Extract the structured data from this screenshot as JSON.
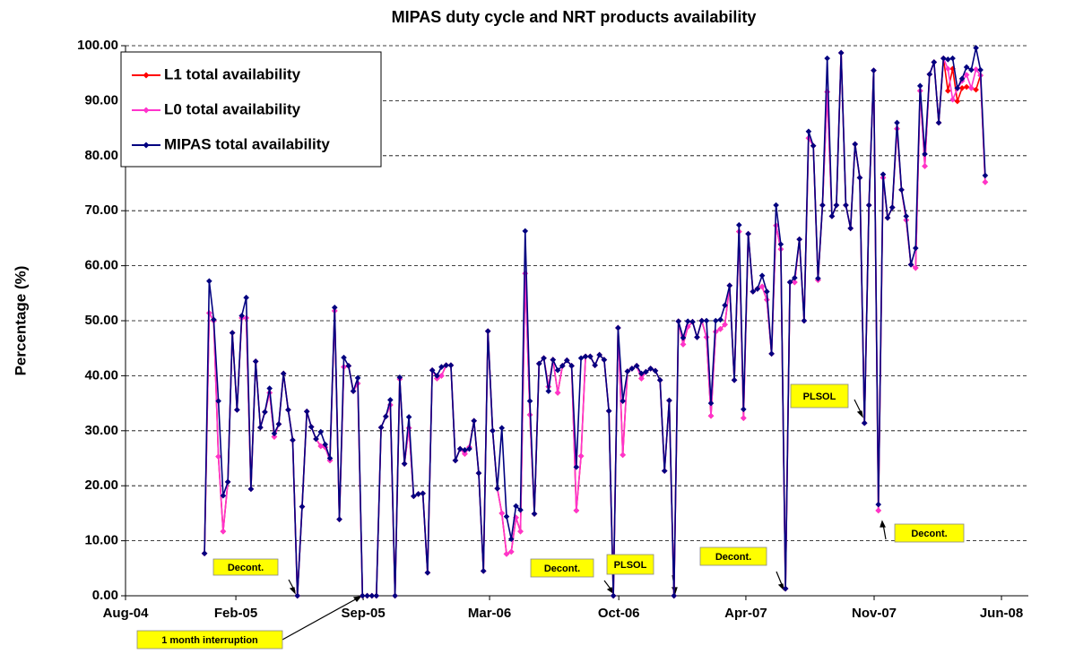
{
  "chart_data": {
    "type": "line",
    "title": "MIPAS duty cycle and NRT products availability",
    "y_label": "Percentage (%)",
    "xlim": [
      2004.659,
      2008.488
    ],
    "xticks": [
      {
        "value": 2004.659,
        "label": "Aug-04"
      },
      {
        "value": 2005.127,
        "label": "Feb-05"
      },
      {
        "value": 2005.667,
        "label": "Sep-05"
      },
      {
        "value": 2006.203,
        "label": "Mar-06"
      },
      {
        "value": 2006.751,
        "label": "Oct-06"
      },
      {
        "value": 2007.29,
        "label": "Apr-07"
      },
      {
        "value": 2007.834,
        "label": "Nov-07"
      },
      {
        "value": 2008.374,
        "label": "Jun-08"
      }
    ],
    "ylim": [
      0,
      100
    ],
    "yticks": [
      {
        "value": 0,
        "label": "0.00"
      },
      {
        "value": 10,
        "label": "10.00"
      },
      {
        "value": 20,
        "label": "20.00"
      },
      {
        "value": 30,
        "label": "30.00"
      },
      {
        "value": 40,
        "label": "40.00"
      },
      {
        "value": 50,
        "label": "50.00"
      },
      {
        "value": 60,
        "label": "60.00"
      },
      {
        "value": 70,
        "label": "70.00"
      },
      {
        "value": 80,
        "label": "80.00"
      },
      {
        "value": 90,
        "label": "90.00"
      },
      {
        "value": 100,
        "label": "100.00"
      }
    ],
    "grid": true,
    "legend": "top-left",
    "x": [
      2004.994,
      2005.014,
      2005.033,
      2005.053,
      2005.073,
      2005.093,
      2005.112,
      2005.132,
      2005.152,
      2005.171,
      2005.191,
      2005.211,
      2005.231,
      2005.25,
      2005.27,
      2005.29,
      2005.309,
      2005.329,
      2005.349,
      2005.368,
      2005.388,
      2005.408,
      2005.428,
      2005.447,
      2005.467,
      2005.487,
      2005.506,
      2005.526,
      2005.546,
      2005.566,
      2005.585,
      2005.605,
      2005.625,
      2005.644,
      2005.664,
      2005.684,
      2005.704,
      2005.723,
      2005.743,
      2005.763,
      2005.782,
      2005.802,
      2005.822,
      2005.842,
      2005.861,
      2005.881,
      2005.901,
      2005.92,
      2005.94,
      2005.96,
      2005.98,
      2005.999,
      2006.019,
      2006.039,
      2006.058,
      2006.078,
      2006.098,
      2006.117,
      2006.137,
      2006.157,
      2006.177,
      2006.196,
      2006.216,
      2006.236,
      2006.255,
      2006.275,
      2006.295,
      2006.315,
      2006.334,
      2006.354,
      2006.374,
      2006.393,
      2006.413,
      2006.433,
      2006.453,
      2006.472,
      2006.492,
      2006.512,
      2006.531,
      2006.551,
      2006.571,
      2006.591,
      2006.61,
      2006.63,
      2006.65,
      2006.669,
      2006.689,
      2006.709,
      2006.728,
      2006.748,
      2006.768,
      2006.788,
      2006.807,
      2006.827,
      2006.847,
      2006.866,
      2006.886,
      2006.906,
      2006.926,
      2006.945,
      2006.965,
      2006.985,
      2007.004,
      2007.024,
      2007.044,
      2007.064,
      2007.083,
      2007.103,
      2007.123,
      2007.142,
      2007.162,
      2007.182,
      2007.201,
      2007.221,
      2007.241,
      2007.261,
      2007.28,
      2007.3,
      2007.32,
      2007.339,
      2007.359,
      2007.379,
      2007.399,
      2007.418,
      2007.438,
      2007.458,
      2007.477,
      2007.497,
      2007.517,
      2007.537,
      2007.556,
      2007.576,
      2007.596,
      2007.615,
      2007.635,
      2007.655,
      2007.674,
      2007.694,
      2007.714,
      2007.734,
      2007.753,
      2007.773,
      2007.793,
      2007.812,
      2007.832,
      2007.852,
      2007.872,
      2007.891,
      2007.911,
      2007.931,
      2007.95,
      2007.97,
      2007.99,
      2008.01,
      2008.029,
      2008.049,
      2008.069,
      2008.088,
      2008.108,
      2008.128,
      2008.147,
      2008.167,
      2008.187,
      2008.207,
      2008.226,
      2008.246,
      2008.266,
      2008.285,
      2008.305
    ],
    "series": [
      {
        "name": "L1 total availability",
        "color": "#ff0000",
        "values": [
          7.7,
          51.4,
          50,
          25.3,
          11.7,
          20.7,
          47.8,
          33.8,
          50.5,
          50.5,
          19.4,
          42.6,
          30.6,
          33.4,
          36.9,
          28.9,
          31.2,
          40.4,
          33.8,
          28.3,
          0,
          16.2,
          33.5,
          30.7,
          28.5,
          27.2,
          27,
          24.6,
          51.8,
          13.9,
          41.6,
          41.8,
          37.2,
          38.6,
          0,
          0,
          0,
          0,
          30.6,
          32.6,
          34.7,
          0,
          39.4,
          24,
          30.5,
          18.1,
          18.5,
          18.6,
          4.2,
          41,
          39.5,
          40,
          41.9,
          41.9,
          24.6,
          26.7,
          25.8,
          27,
          31.8,
          22.3,
          4.5,
          48.1,
          30,
          19.5,
          15,
          7.6,
          8,
          14.2,
          11.7,
          58.6,
          32.9,
          14.9,
          42.2,
          43.2,
          38,
          42.9,
          36.9,
          41.8,
          42.8,
          41.8,
          15.5,
          25.4,
          43.5,
          43.5,
          41.9,
          43.8,
          42.9,
          33.6,
          0,
          48.7,
          25.6,
          40.8,
          41.3,
          41.8,
          39.5,
          40.7,
          41.3,
          40.9,
          39.2,
          22.7,
          35.5,
          0,
          49.9,
          45.7,
          48.9,
          49.8,
          47,
          50,
          47,
          32.7,
          48,
          48.5,
          49.3,
          56.4,
          39.2,
          66.2,
          32.3,
          65.8,
          55.3,
          55.8,
          56.2,
          53.8,
          44,
          67.3,
          63,
          1.3,
          57,
          57,
          64.8,
          50,
          83.2,
          81.8,
          57.4,
          71,
          91.6,
          69,
          71,
          98.7,
          71,
          66.8,
          82.1,
          76,
          31.4,
          71,
          95.5,
          15.5,
          76,
          68.7,
          70.6,
          84.9,
          73.8,
          68.3,
          60.2,
          59.6,
          91.8,
          78.1,
          94.8,
          97,
          86,
          97.7,
          91.8,
          95.8,
          89.9,
          92.3,
          92.5,
          92.3,
          92,
          94.6,
          75.2
        ]
      },
      {
        "name": "L0 total availability",
        "color": "#ff33cc",
        "values": [
          7.7,
          51.4,
          50,
          25.3,
          11.7,
          20.7,
          47.8,
          33.8,
          50.5,
          50.5,
          19.4,
          42.6,
          30.6,
          33.4,
          36.9,
          28.9,
          31.2,
          40.4,
          33.8,
          28.3,
          0,
          16.2,
          33.5,
          30.7,
          28.5,
          27.2,
          27,
          24.6,
          51.8,
          13.9,
          41.6,
          41.8,
          37.2,
          38.6,
          0,
          0,
          0,
          0,
          30.6,
          32.6,
          34.7,
          0,
          39.4,
          24,
          30.5,
          18.1,
          18.5,
          18.6,
          4.2,
          41,
          39.5,
          40,
          41.9,
          41.9,
          24.6,
          26.7,
          25.8,
          27,
          31.8,
          22.3,
          4.5,
          48.1,
          30,
          19.5,
          15,
          7.6,
          8,
          14.2,
          11.7,
          58.6,
          32.9,
          14.9,
          42.2,
          43.2,
          38,
          42.9,
          36.9,
          41.8,
          42.8,
          41.8,
          15.5,
          25.4,
          43.5,
          43.5,
          41.9,
          43.8,
          42.9,
          33.6,
          0,
          48.7,
          25.6,
          40.8,
          41.3,
          41.8,
          39.5,
          40.7,
          41.3,
          40.9,
          39.2,
          22.7,
          35.5,
          0,
          49.9,
          45.7,
          48.9,
          49.8,
          47,
          50,
          47,
          32.7,
          48,
          48.5,
          49.3,
          56.4,
          39.2,
          66.2,
          32.3,
          65.8,
          55.3,
          55.8,
          56.2,
          53.8,
          44,
          67.3,
          63,
          1.3,
          57,
          57,
          64.8,
          50,
          83.2,
          81.8,
          57.4,
          71,
          91.6,
          69,
          71,
          98.7,
          71,
          66.8,
          82.1,
          76,
          31.4,
          71,
          95.5,
          15.5,
          76,
          68.7,
          70.6,
          84.9,
          73.8,
          68.3,
          60.2,
          59.6,
          91.8,
          78.1,
          94.8,
          97,
          86,
          97.7,
          95.8,
          90.2,
          92.2,
          93.6,
          94.7,
          92.3,
          95.7,
          94.6,
          75.2
        ]
      },
      {
        "name": "MIPAS total availability",
        "color": "#000080",
        "values": [
          7.7,
          57.2,
          50.2,
          35.4,
          18.2,
          20.7,
          47.8,
          33.8,
          50.9,
          54.2,
          19.4,
          42.6,
          30.6,
          33.4,
          37.7,
          29.5,
          31.2,
          40.4,
          33.8,
          28.3,
          0,
          16.2,
          33.5,
          30.7,
          28.5,
          29.8,
          27.5,
          25,
          52.4,
          13.9,
          43.3,
          41.8,
          37.2,
          39.6,
          0,
          0,
          0,
          0,
          30.6,
          32.6,
          35.6,
          0,
          39.7,
          24,
          32.5,
          18.1,
          18.5,
          18.6,
          4.2,
          41,
          40,
          41.6,
          41.9,
          41.9,
          24.6,
          26.7,
          26.5,
          26.7,
          31.8,
          22.3,
          4.5,
          48.1,
          30,
          19.5,
          30.5,
          14.4,
          10.3,
          16.3,
          15.6,
          66.3,
          35.4,
          14.9,
          42.2,
          43.2,
          37.2,
          42.9,
          41,
          41.8,
          42.8,
          41.8,
          23.4,
          43.2,
          43.5,
          43.5,
          41.9,
          43.8,
          42.9,
          33.6,
          0,
          48.7,
          35.4,
          40.8,
          41.3,
          41.8,
          40.4,
          40.7,
          41.3,
          40.9,
          39.2,
          22.7,
          35.5,
          0,
          49.9,
          46.9,
          49.9,
          49.8,
          47,
          50,
          50,
          35,
          50,
          50.2,
          52.8,
          56.4,
          39.2,
          67.4,
          33.9,
          65.8,
          55.3,
          55.8,
          58.2,
          55.3,
          44,
          71,
          63.9,
          1.3,
          57,
          57.8,
          64.8,
          50,
          84.4,
          81.8,
          57.7,
          71,
          97.7,
          69,
          71,
          98.7,
          71,
          66.8,
          82.1,
          76,
          31.4,
          71,
          95.5,
          16.6,
          76.6,
          68.7,
          70.6,
          86,
          73.8,
          69,
          60.2,
          63.2,
          92.7,
          80.3,
          94.8,
          97,
          86,
          97.7,
          97.5,
          97.7,
          92.3,
          94,
          96.1,
          95.6,
          99.6,
          95.6,
          76.4
        ]
      }
    ],
    "annotations": [
      "Decont.",
      "1 month interruption",
      "Decont.",
      "PLSOL",
      "Decont.",
      "PLSOL",
      "Decont."
    ]
  }
}
